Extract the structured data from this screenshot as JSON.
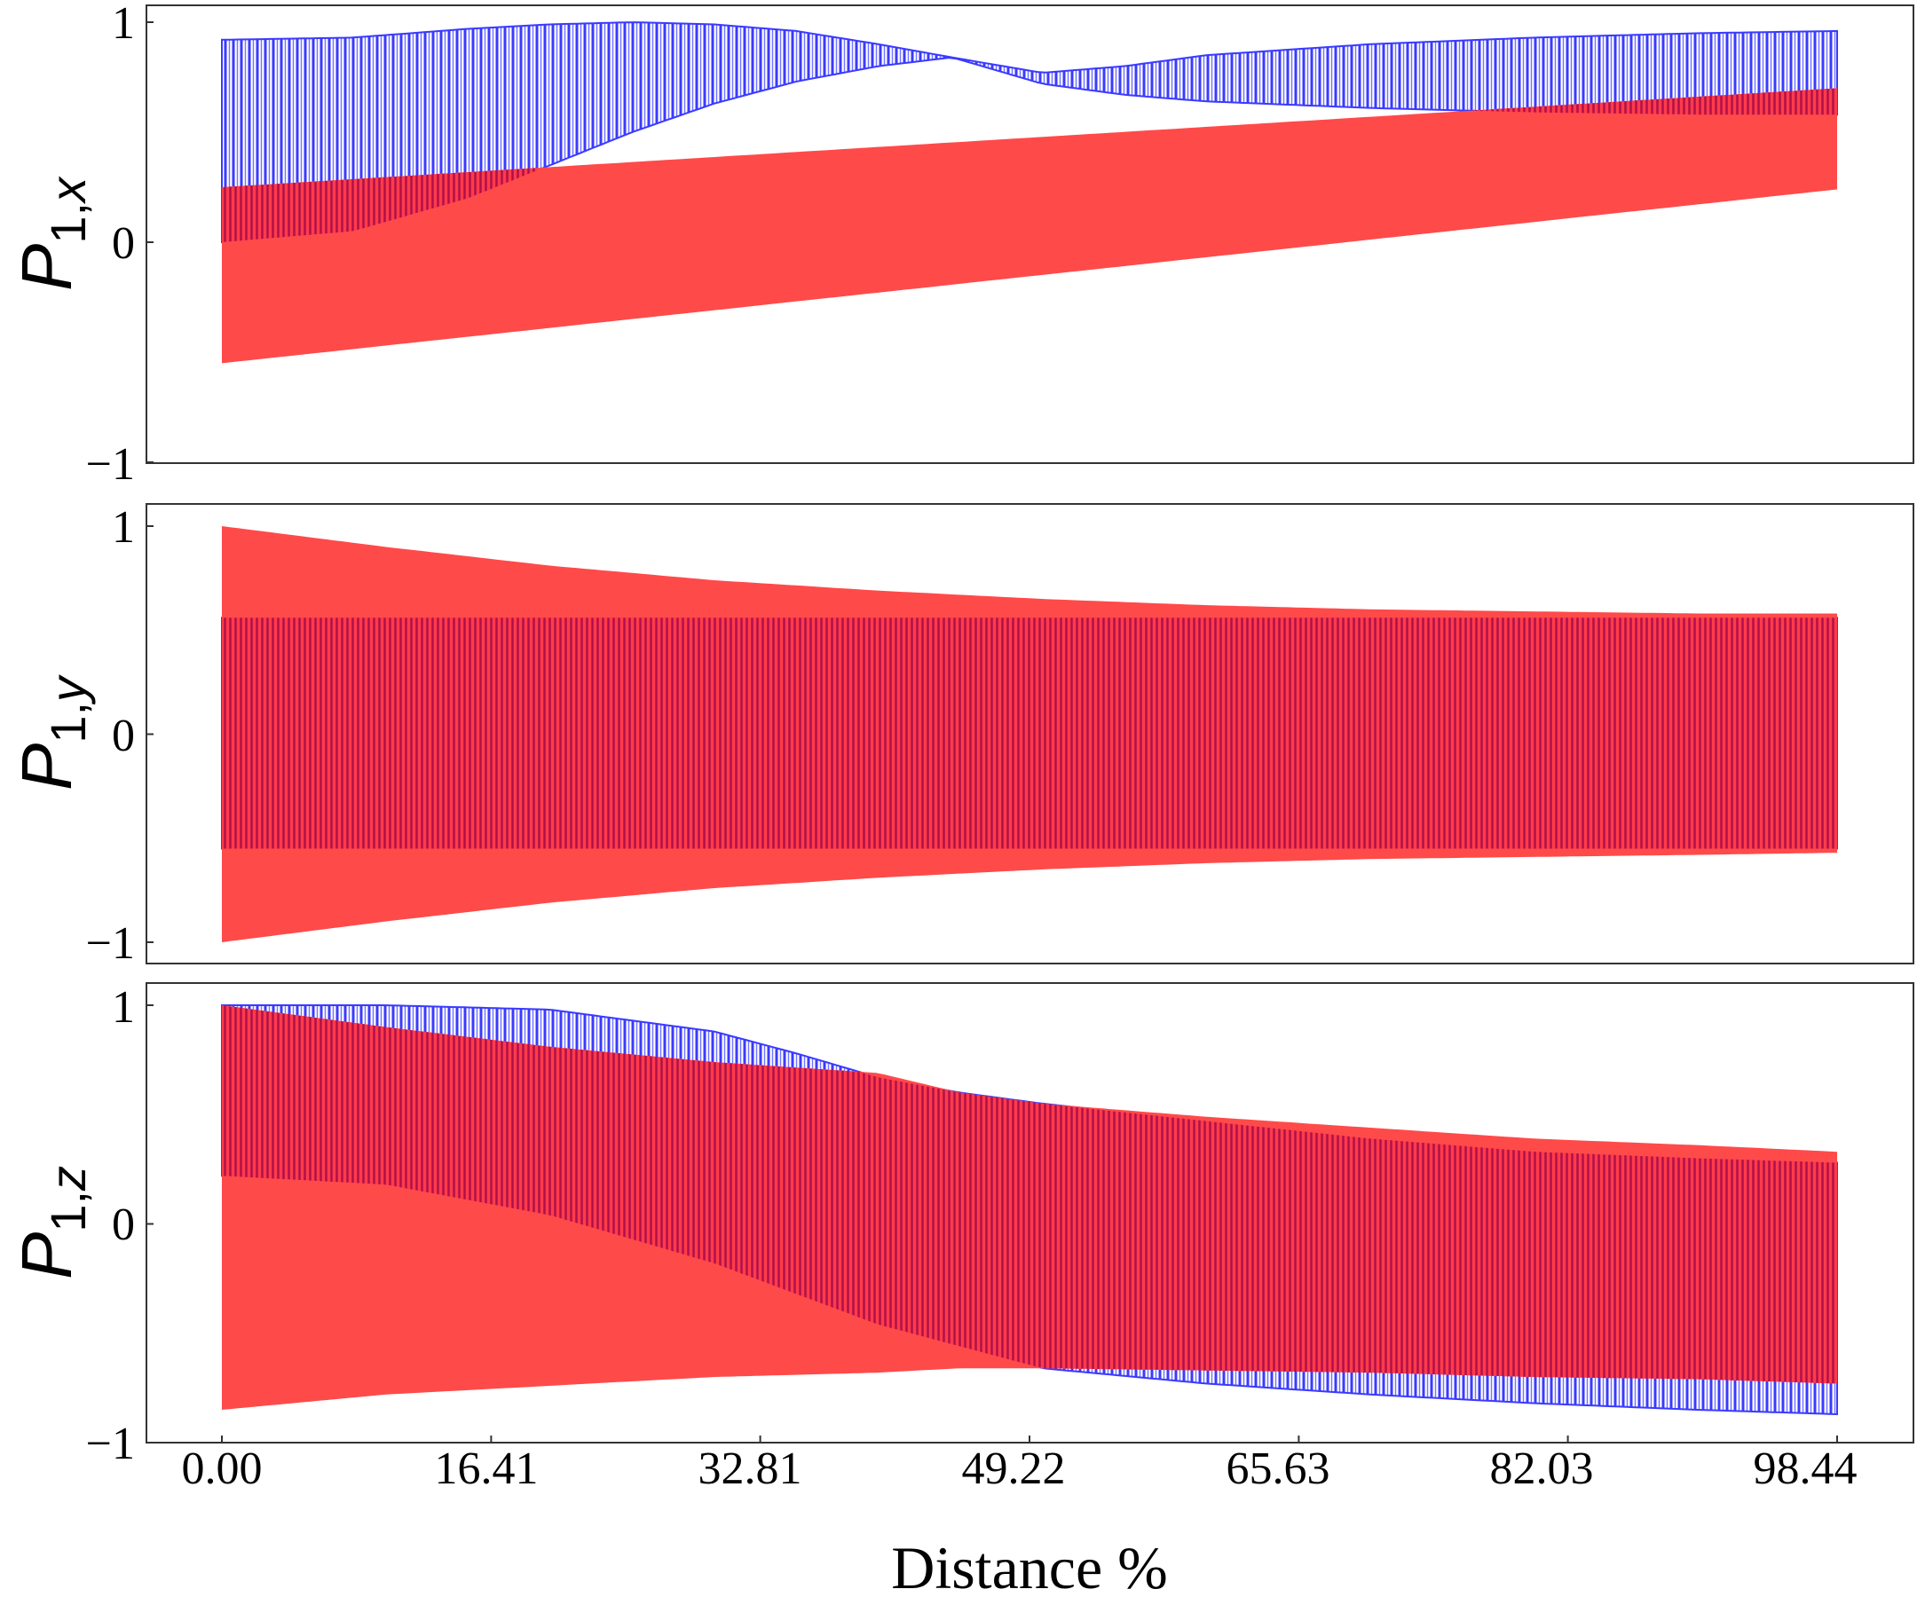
{
  "colors": {
    "series_a": "#ff2a2a",
    "series_b": "#3a3aff",
    "overlap": "#cc1144",
    "axis": "#333333"
  },
  "chart_data": [
    {
      "type": "area",
      "panel": "x",
      "ylabel": {
        "base": "P",
        "sub": "1,",
        "subvar": "x"
      },
      "xlim": [
        0,
        98.44
      ],
      "ylim": [
        -1,
        1
      ],
      "yticks": [
        {
          "value": 1,
          "label": "1"
        },
        {
          "value": 0,
          "label": "0"
        },
        {
          "value": -1,
          "label": "−1"
        }
      ],
      "series": [
        {
          "name": "red",
          "color": "#ff2a2a",
          "x": [
            0,
            98.44
          ],
          "upper": [
            0.25,
            0.7
          ],
          "lower": [
            -0.55,
            0.24
          ]
        },
        {
          "name": "blue",
          "color": "#3a3aff",
          "x": [
            0,
            8,
            15,
            20,
            25,
            30,
            35,
            40,
            44.5,
            50,
            55,
            60,
            70,
            80,
            90,
            98.44
          ],
          "upper": [
            0.92,
            0.93,
            0.97,
            0.99,
            1.0,
            0.99,
            0.96,
            0.9,
            0.84,
            0.77,
            0.8,
            0.85,
            0.9,
            0.93,
            0.95,
            0.96
          ],
          "lower": [
            0.0,
            0.05,
            0.2,
            0.35,
            0.5,
            0.63,
            0.73,
            0.8,
            0.84,
            0.72,
            0.67,
            0.64,
            0.61,
            0.59,
            0.58,
            0.58
          ]
        }
      ]
    },
    {
      "type": "area",
      "panel": "y",
      "ylabel": {
        "base": "P",
        "sub": "1,",
        "subvar": "y"
      },
      "xlim": [
        0,
        98.44
      ],
      "ylim": [
        -1,
        1
      ],
      "yticks": [
        {
          "value": 1,
          "label": "1"
        },
        {
          "value": 0,
          "label": "0"
        },
        {
          "value": -1,
          "label": "−1"
        }
      ],
      "series": [
        {
          "name": "red",
          "color": "#ff2a2a",
          "x": [
            0,
            10,
            20,
            30,
            40,
            50,
            60,
            70,
            80,
            90,
            98.44
          ],
          "upper": [
            1.0,
            0.9,
            0.81,
            0.74,
            0.69,
            0.65,
            0.62,
            0.6,
            0.59,
            0.58,
            0.58
          ],
          "lower": [
            -1.0,
            -0.9,
            -0.81,
            -0.74,
            -0.69,
            -0.65,
            -0.62,
            -0.6,
            -0.59,
            -0.58,
            -0.57
          ]
        },
        {
          "name": "blue",
          "color": "#3a3aff",
          "x": [
            0,
            98.44
          ],
          "upper": [
            0.56,
            0.56
          ],
          "lower": [
            -0.55,
            -0.55
          ]
        }
      ]
    },
    {
      "type": "area",
      "panel": "z",
      "ylabel": {
        "base": "P",
        "sub": "1,",
        "subvar": "z"
      },
      "xlabel": "Distance %",
      "xlim": [
        0,
        98.44
      ],
      "ylim": [
        -1,
        1
      ],
      "xticks": [
        {
          "value": 0,
          "label": "0.00"
        },
        {
          "value": 16.41,
          "label": "16.41"
        },
        {
          "value": 32.81,
          "label": "32.81"
        },
        {
          "value": 49.22,
          "label": "49.22"
        },
        {
          "value": 65.63,
          "label": "65.63"
        },
        {
          "value": 82.03,
          "label": "82.03"
        },
        {
          "value": 98.44,
          "label": "98.44"
        }
      ],
      "yticks": [
        {
          "value": 1,
          "label": "1"
        },
        {
          "value": 0,
          "label": "0"
        },
        {
          "value": -1,
          "label": "−1"
        }
      ],
      "series": [
        {
          "name": "red",
          "color": "#ff2a2a",
          "x": [
            0,
            10,
            20,
            30,
            40,
            45,
            50,
            60,
            70,
            80,
            90,
            98.44
          ],
          "upper": [
            1.0,
            0.9,
            0.81,
            0.74,
            0.69,
            0.6,
            0.55,
            0.49,
            0.44,
            0.39,
            0.36,
            0.33
          ],
          "lower": [
            -0.85,
            -0.78,
            -0.74,
            -0.7,
            -0.68,
            -0.66,
            -0.66,
            -0.67,
            -0.68,
            -0.7,
            -0.71,
            -0.73
          ]
        },
        {
          "name": "blue",
          "color": "#3a3aff",
          "x": [
            0,
            10,
            20,
            30,
            35,
            40,
            45,
            50,
            60,
            70,
            80,
            90,
            98.44
          ],
          "upper": [
            1.0,
            1.0,
            0.98,
            0.88,
            0.78,
            0.67,
            0.6,
            0.55,
            0.47,
            0.39,
            0.33,
            0.3,
            0.28
          ],
          "lower": [
            0.22,
            0.18,
            0.04,
            -0.18,
            -0.32,
            -0.46,
            -0.56,
            -0.66,
            -0.73,
            -0.78,
            -0.82,
            -0.85,
            -0.87
          ]
        }
      ]
    }
  ]
}
